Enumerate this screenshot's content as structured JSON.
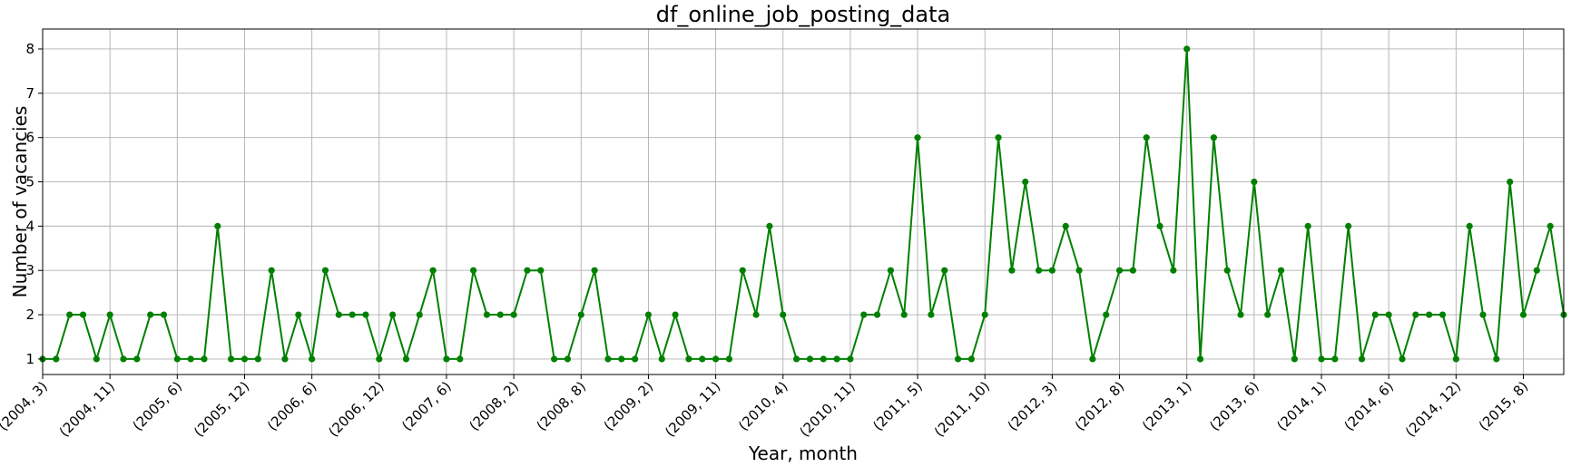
{
  "chart_data": {
    "type": "line",
    "title": "df_online_job_posting_data",
    "xlabel": "Year, month",
    "ylabel": "Number of vacancies",
    "x_tick_labels": [
      "(2004, 3)",
      "(2004, 11)",
      "(2005, 6)",
      "(2005, 12)",
      "(2006, 6)",
      "(2006, 12)",
      "(2007, 6)",
      "(2008, 2)",
      "(2008, 8)",
      "(2009, 2)",
      "(2009, 11)",
      "(2010, 4)",
      "(2010, 11)",
      "(2011, 5)",
      "(2011, 10)",
      "(2012, 3)",
      "(2012, 8)",
      "(2013, 1)",
      "(2013, 6)",
      "(2014, 1)",
      "(2014, 6)",
      "(2014, 12)",
      "(2015, 8)"
    ],
    "y_ticks": [
      1,
      2,
      3,
      4,
      5,
      6,
      7,
      8
    ],
    "ylim": [
      0.65,
      8.45
    ],
    "grid": true,
    "color": "#008000",
    "series": [
      {
        "values": [
          1,
          1,
          2,
          2,
          1,
          2,
          1,
          1,
          2,
          2,
          1,
          1,
          1,
          4,
          1,
          1,
          1,
          3,
          1,
          2,
          1,
          3,
          2,
          2,
          2,
          1,
          2,
          1,
          2,
          3,
          1,
          1,
          3,
          2,
          2,
          2,
          3,
          3,
          1,
          1,
          2,
          3,
          1,
          1,
          1,
          2,
          1,
          2,
          1,
          1,
          1,
          1,
          3,
          2,
          4,
          2,
          1,
          1,
          1,
          1,
          1,
          2,
          2,
          3,
          2,
          6,
          2,
          3,
          1,
          1,
          2,
          6,
          3,
          5,
          3,
          3,
          4,
          3,
          1,
          2,
          3,
          3,
          6,
          4,
          3,
          8,
          1,
          6,
          3,
          2,
          5,
          2,
          3,
          1,
          4,
          1,
          1,
          4,
          1,
          2,
          2,
          1,
          2,
          2,
          2,
          1,
          4,
          2,
          1,
          5,
          2,
          3,
          4,
          2
        ]
      }
    ]
  }
}
